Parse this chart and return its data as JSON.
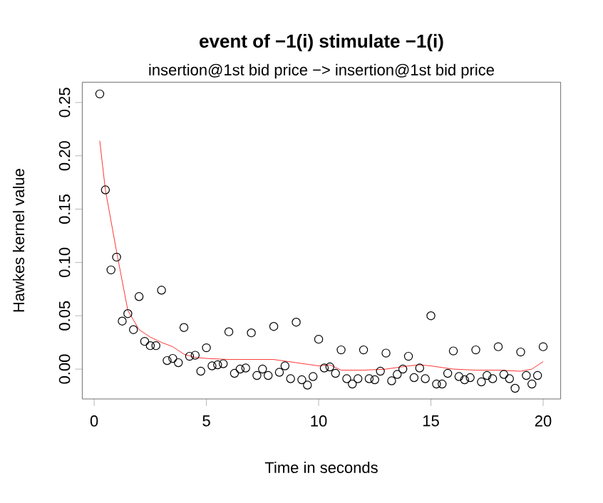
{
  "chart_data": {
    "type": "scatter",
    "title": "event of −1(i) stimulate −1(i)",
    "subtitle": "insertion@1st bid price −> insertion@1st bid price",
    "xlabel": "Time in seconds",
    "ylabel": "Hawkes kernel value",
    "xlim": [
      -0.53,
      20.78
    ],
    "ylim": [
      -0.028,
      0.269
    ],
    "xticks": [
      0,
      5,
      10,
      15,
      20
    ],
    "yticks": [
      {
        "value": 0,
        "label": "0.00"
      },
      {
        "value": 0.05,
        "label": "0.05"
      },
      {
        "value": 0.1,
        "label": "0.10"
      },
      {
        "value": 0.15,
        "label": "0.15"
      },
      {
        "value": 0.2,
        "label": "0.20"
      },
      {
        "value": 0.25,
        "label": "0.25"
      }
    ],
    "grid": false,
    "marker": "circle",
    "series": [
      {
        "color": "#000000",
        "x": [
          0.25,
          0.5,
          0.75,
          1.0,
          1.25,
          1.5,
          1.75,
          2.0,
          2.25,
          2.5,
          2.75,
          3.0,
          3.25,
          3.5,
          3.75,
          4.0,
          4.25,
          4.5,
          4.75,
          5.0,
          5.25,
          5.5,
          5.75,
          6.0,
          6.25,
          6.5,
          6.75,
          7.0,
          7.25,
          7.5,
          7.75,
          8.0,
          8.25,
          8.5,
          8.75,
          9.0,
          9.25,
          9.5,
          9.75,
          10.0,
          10.25,
          10.5,
          10.75,
          11.0,
          11.25,
          11.5,
          11.75,
          12.0,
          12.25,
          12.5,
          12.75,
          13.0,
          13.25,
          13.5,
          13.75,
          14.0,
          14.25,
          14.5,
          14.75,
          15.0,
          15.25,
          15.5,
          15.75,
          16.0,
          16.25,
          16.5,
          16.75,
          17.0,
          17.25,
          17.5,
          17.75,
          18.0,
          18.25,
          18.5,
          18.75,
          19.0,
          19.25,
          19.5,
          19.75,
          20.0
        ],
        "values": [
          0.258,
          0.168,
          0.093,
          0.105,
          0.045,
          0.052,
          0.037,
          0.068,
          0.026,
          0.022,
          0.022,
          0.074,
          0.008,
          0.01,
          0.006,
          0.039,
          0.012,
          0.013,
          -0.002,
          0.02,
          0.003,
          0.004,
          0.005,
          0.035,
          -0.004,
          0.0,
          0.001,
          0.034,
          -0.006,
          0.0,
          -0.006,
          0.04,
          -0.003,
          0.003,
          -0.009,
          0.044,
          -0.01,
          -0.015,
          -0.007,
          0.028,
          0.001,
          0.002,
          -0.004,
          0.018,
          -0.009,
          -0.014,
          -0.009,
          0.018,
          -0.009,
          -0.01,
          -0.002,
          0.015,
          -0.011,
          -0.005,
          0.0,
          0.012,
          -0.008,
          0.001,
          -0.009,
          0.05,
          -0.014,
          -0.014,
          -0.004,
          0.017,
          -0.007,
          -0.01,
          -0.008,
          0.018,
          -0.012,
          -0.006,
          -0.009,
          0.021,
          -0.005,
          -0.009,
          -0.018,
          0.016,
          -0.006,
          -0.014,
          -0.006,
          0.021
        ]
      },
      {
        "type": "line",
        "color": "#ff0000",
        "marker": "none",
        "x": [
          0.25,
          0.5,
          1.0,
          1.5,
          2.0,
          2.5,
          3.0,
          3.5,
          4.0,
          4.5,
          5.0,
          6.0,
          7.0,
          8.0,
          9.0,
          10.0,
          10.5,
          11.0,
          12.0,
          13.0,
          14.0,
          14.5,
          15.0,
          16.0,
          17.0,
          18.0,
          19.0,
          19.5,
          20.0
        ],
        "values": [
          0.214,
          0.168,
          0.11,
          0.055,
          0.037,
          0.03,
          0.025,
          0.021,
          0.014,
          0.011,
          0.01,
          0.009,
          0.009,
          0.009,
          0.006,
          0.003,
          0.004,
          -0.001,
          -0.001,
          0.0,
          0.003,
          0.004,
          0.003,
          0.0,
          -0.001,
          -0.001,
          -0.002,
          0.0,
          0.007
        ]
      }
    ]
  }
}
